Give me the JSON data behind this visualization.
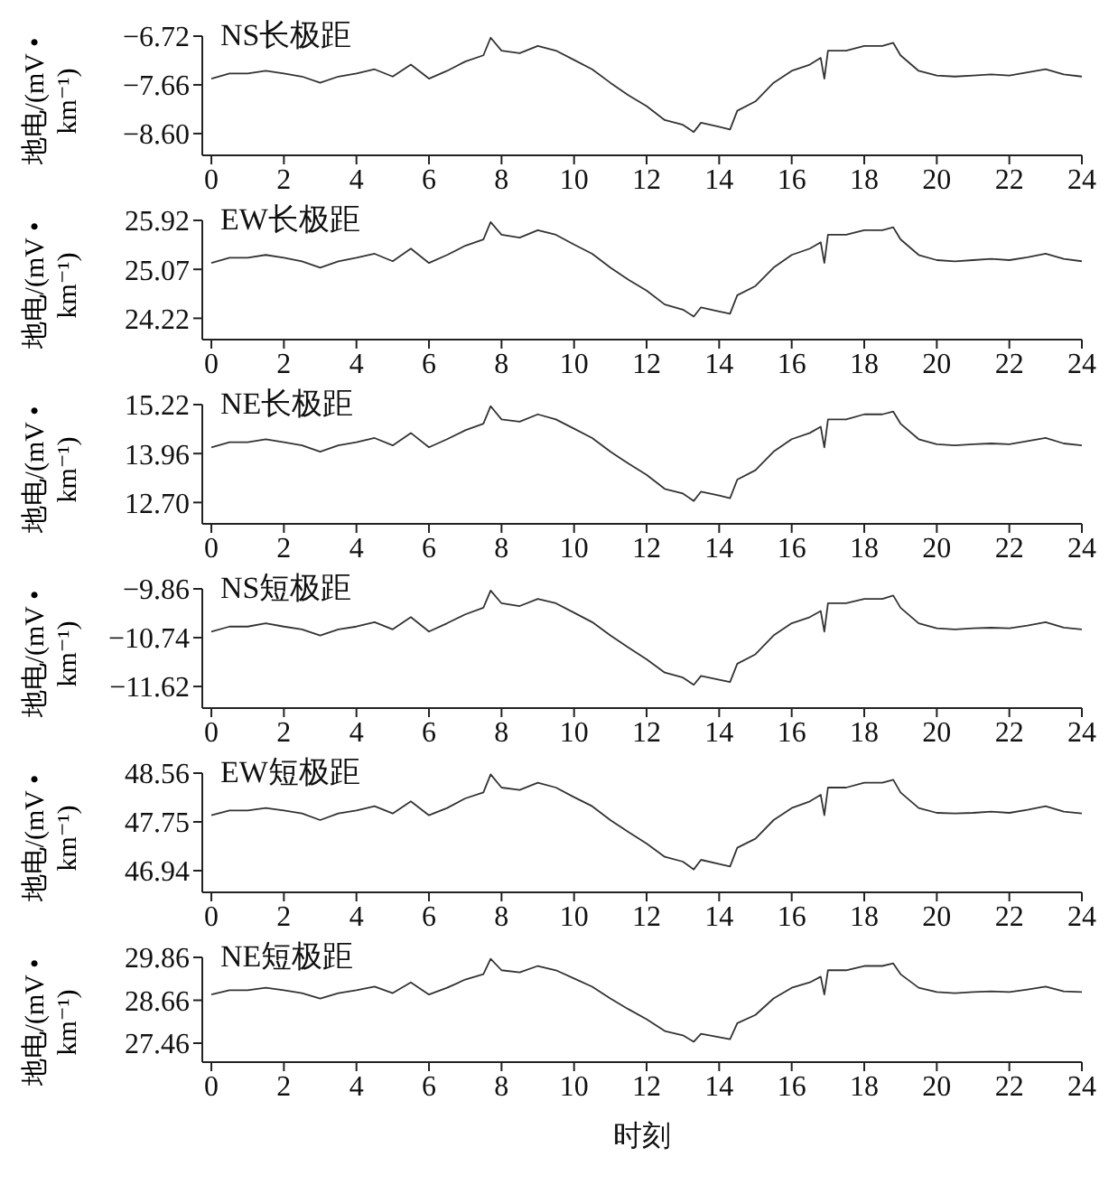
{
  "chart_data": [
    {
      "type": "line",
      "title": "NS长极距",
      "ylabel": "地电/(mV • km⁻¹)",
      "color": "#333333",
      "xlim": [
        -0.25,
        24
      ],
      "xticks": [
        0,
        2,
        4,
        6,
        8,
        10,
        12,
        14,
        16,
        18,
        20,
        22,
        24
      ],
      "ylim": [
        -9.02,
        -6.72
      ],
      "yticks": [
        {
          "value": -6.72,
          "label": "−6.72"
        },
        {
          "value": -7.66,
          "label": "−7.66"
        },
        {
          "value": -8.6,
          "label": "−8.60"
        }
      ],
      "x": [
        0,
        0.5,
        1,
        1.5,
        2,
        2.5,
        3,
        3.5,
        4,
        4.5,
        5,
        5.5,
        6,
        6.5,
        7,
        7.5,
        7.7,
        8,
        8.5,
        9,
        9.5,
        10,
        10.5,
        11,
        11.5,
        12,
        12.5,
        13,
        13.3,
        13.5,
        14,
        14.3,
        14.5,
        15,
        15.5,
        16,
        16.5,
        16.8,
        16.9,
        17,
        17.5,
        18,
        18.5,
        18.8,
        19,
        19.5,
        20,
        20.5,
        21,
        21.5,
        22,
        22.5,
        23,
        23.5,
        24
      ],
      "values": [
        -7.54,
        -7.44,
        -7.44,
        -7.39,
        -7.44,
        -7.5,
        -7.62,
        -7.5,
        -7.44,
        -7.36,
        -7.5,
        -7.27,
        -7.54,
        -7.39,
        -7.21,
        -7.09,
        -6.75,
        -7.0,
        -7.05,
        -6.91,
        -7.0,
        -7.18,
        -7.36,
        -7.62,
        -7.86,
        -8.07,
        -8.34,
        -8.43,
        -8.57,
        -8.39,
        -8.47,
        -8.52,
        -8.16,
        -7.98,
        -7.62,
        -7.39,
        -7.27,
        -7.14,
        -7.54,
        -7.0,
        -7.0,
        -6.91,
        -6.91,
        -6.85,
        -7.09,
        -7.39,
        -7.48,
        -7.5,
        -7.48,
        -7.46,
        -7.48,
        -7.42,
        -7.36,
        -7.46,
        -7.5
      ]
    },
    {
      "type": "line",
      "title": "EW长极距",
      "ylabel": "地电/(mV • km⁻¹)",
      "color": "#333333",
      "xlim": [
        -0.25,
        24
      ],
      "xticks": [
        0,
        2,
        4,
        6,
        8,
        10,
        12,
        14,
        16,
        18,
        20,
        22,
        24
      ],
      "ylim": [
        23.85,
        25.92
      ],
      "yticks": [
        {
          "value": 25.92,
          "label": "25.92"
        },
        {
          "value": 25.07,
          "label": "25.07"
        },
        {
          "value": 24.22,
          "label": "24.22"
        }
      ],
      "x": [
        0,
        0.5,
        1,
        1.5,
        2,
        2.5,
        3,
        3.5,
        4,
        4.5,
        5,
        5.5,
        6,
        6.5,
        7,
        7.5,
        7.7,
        8,
        8.5,
        9,
        9.5,
        10,
        10.5,
        11,
        11.5,
        12,
        12.5,
        13,
        13.3,
        13.5,
        14,
        14.3,
        14.5,
        15,
        15.5,
        16,
        16.5,
        16.8,
        16.9,
        17,
        17.5,
        18,
        18.5,
        18.8,
        19,
        19.5,
        20,
        20.5,
        21,
        21.5,
        22,
        22.5,
        23,
        23.5,
        24
      ],
      "values": [
        25.18,
        25.27,
        25.27,
        25.32,
        25.27,
        25.21,
        25.1,
        25.21,
        25.27,
        25.34,
        25.21,
        25.43,
        25.18,
        25.32,
        25.48,
        25.59,
        25.89,
        25.67,
        25.62,
        25.75,
        25.67,
        25.5,
        25.34,
        25.1,
        24.89,
        24.7,
        24.46,
        24.37,
        24.25,
        24.41,
        24.34,
        24.3,
        24.62,
        24.78,
        25.1,
        25.32,
        25.43,
        25.54,
        25.18,
        25.67,
        25.67,
        25.75,
        25.75,
        25.8,
        25.59,
        25.32,
        25.23,
        25.21,
        25.23,
        25.25,
        25.23,
        25.28,
        25.34,
        25.25,
        25.21
      ]
    },
    {
      "type": "line",
      "title": "NE长极距",
      "ylabel": "地电/(mV • km⁻¹)",
      "color": "#333333",
      "xlim": [
        -0.25,
        24
      ],
      "xticks": [
        0,
        2,
        4,
        6,
        8,
        10,
        12,
        14,
        16,
        18,
        20,
        22,
        24
      ],
      "ylim": [
        12.15,
        15.22
      ],
      "yticks": [
        {
          "value": 15.22,
          "label": "15.22"
        },
        {
          "value": 13.96,
          "label": "13.96"
        },
        {
          "value": 12.7,
          "label": "12.70"
        }
      ],
      "x": [
        0,
        0.5,
        1,
        1.5,
        2,
        2.5,
        3,
        3.5,
        4,
        4.5,
        5,
        5.5,
        6,
        6.5,
        7,
        7.5,
        7.7,
        8,
        8.5,
        9,
        9.5,
        10,
        10.5,
        11,
        11.5,
        12,
        12.5,
        13,
        13.3,
        13.5,
        14,
        14.3,
        14.5,
        15,
        15.5,
        16,
        16.5,
        16.8,
        16.9,
        17,
        17.5,
        18,
        18.5,
        18.8,
        19,
        19.5,
        20,
        20.5,
        21,
        21.5,
        22,
        22.5,
        23,
        23.5,
        24
      ],
      "values": [
        14.12,
        14.25,
        14.25,
        14.33,
        14.25,
        14.17,
        14.01,
        14.17,
        14.25,
        14.36,
        14.17,
        14.49,
        14.12,
        14.33,
        14.56,
        14.73,
        15.18,
        14.84,
        14.78,
        14.97,
        14.84,
        14.6,
        14.36,
        14.01,
        13.7,
        13.41,
        13.05,
        12.93,
        12.74,
        12.98,
        12.88,
        12.81,
        13.29,
        13.53,
        14.01,
        14.33,
        14.49,
        14.65,
        14.12,
        14.84,
        14.84,
        14.97,
        14.97,
        15.04,
        14.73,
        14.33,
        14.2,
        14.17,
        14.2,
        14.22,
        14.2,
        14.28,
        14.36,
        14.22,
        14.17
      ]
    },
    {
      "type": "line",
      "title": "NS短极距",
      "ylabel": "地电/(mV • km⁻¹)",
      "color": "#333333",
      "xlim": [
        -0.25,
        24
      ],
      "xticks": [
        0,
        2,
        4,
        6,
        8,
        10,
        12,
        14,
        16,
        18,
        20,
        22,
        24
      ],
      "ylim": [
        -12.01,
        -9.86
      ],
      "yticks": [
        {
          "value": -9.86,
          "label": "−9.86"
        },
        {
          "value": -10.74,
          "label": "−10.74"
        },
        {
          "value": -11.62,
          "label": "−11.62"
        }
      ],
      "x": [
        0,
        0.5,
        1,
        1.5,
        2,
        2.5,
        3,
        3.5,
        4,
        4.5,
        5,
        5.5,
        6,
        6.5,
        7,
        7.5,
        7.7,
        8,
        8.5,
        9,
        9.5,
        10,
        10.5,
        11,
        11.5,
        12,
        12.5,
        13,
        13.3,
        13.5,
        14,
        14.3,
        14.5,
        15,
        15.5,
        16,
        16.5,
        16.8,
        16.9,
        17,
        17.5,
        18,
        18.5,
        18.8,
        19,
        19.5,
        20,
        20.5,
        21,
        21.5,
        22,
        22.5,
        23,
        23.5,
        24
      ],
      "values": [
        -10.63,
        -10.54,
        -10.54,
        -10.48,
        -10.54,
        -10.59,
        -10.7,
        -10.59,
        -10.54,
        -10.46,
        -10.59,
        -10.37,
        -10.63,
        -10.48,
        -10.32,
        -10.2,
        -9.89,
        -10.12,
        -10.17,
        -10.04,
        -10.12,
        -10.29,
        -10.46,
        -10.7,
        -10.92,
        -11.13,
        -11.37,
        -11.46,
        -11.59,
        -11.43,
        -11.5,
        -11.54,
        -11.21,
        -11.04,
        -10.7,
        -10.48,
        -10.37,
        -10.26,
        -10.63,
        -10.12,
        -10.12,
        -10.04,
        -10.04,
        -9.98,
        -10.2,
        -10.48,
        -10.57,
        -10.59,
        -10.57,
        -10.56,
        -10.57,
        -10.52,
        -10.46,
        -10.56,
        -10.59
      ]
    },
    {
      "type": "line",
      "title": "EW短极距",
      "ylabel": "地电/(mV • km⁻¹)",
      "color": "#333333",
      "xlim": [
        -0.25,
        24
      ],
      "xticks": [
        0,
        2,
        4,
        6,
        8,
        10,
        12,
        14,
        16,
        18,
        20,
        22,
        24
      ],
      "ylim": [
        46.58,
        48.56
      ],
      "yticks": [
        {
          "value": 48.56,
          "label": "48.56"
        },
        {
          "value": 47.75,
          "label": "47.75"
        },
        {
          "value": 46.94,
          "label": "46.94"
        }
      ],
      "x": [
        0,
        0.5,
        1,
        1.5,
        2,
        2.5,
        3,
        3.5,
        4,
        4.5,
        5,
        5.5,
        6,
        6.5,
        7,
        7.5,
        7.7,
        8,
        8.5,
        9,
        9.5,
        10,
        10.5,
        11,
        11.5,
        12,
        12.5,
        13,
        13.3,
        13.5,
        14,
        14.3,
        14.5,
        15,
        15.5,
        16,
        16.5,
        16.8,
        16.9,
        17,
        17.5,
        18,
        18.5,
        18.8,
        19,
        19.5,
        20,
        20.5,
        21,
        21.5,
        22,
        22.5,
        23,
        23.5,
        24
      ],
      "values": [
        47.86,
        47.94,
        47.94,
        47.98,
        47.94,
        47.89,
        47.78,
        47.89,
        47.94,
        48.01,
        47.89,
        48.09,
        47.86,
        47.98,
        48.14,
        48.24,
        48.54,
        48.32,
        48.28,
        48.4,
        48.32,
        48.16,
        48.01,
        47.78,
        47.58,
        47.39,
        47.17,
        47.09,
        46.96,
        47.12,
        47.05,
        47.01,
        47.32,
        47.47,
        47.78,
        47.98,
        48.09,
        48.2,
        47.86,
        48.32,
        48.32,
        48.4,
        48.4,
        48.45,
        48.24,
        47.98,
        47.9,
        47.89,
        47.9,
        47.92,
        47.9,
        47.95,
        48.01,
        47.92,
        47.89
      ]
    },
    {
      "type": "line",
      "title": "NE短极距",
      "xlabel": "时刻",
      "ylabel": "地电/(mV • km⁻¹)",
      "color": "#333333",
      "xlim": [
        -0.25,
        24
      ],
      "xticks": [
        0,
        2,
        4,
        6,
        8,
        10,
        12,
        14,
        16,
        18,
        20,
        22,
        24
      ],
      "ylim": [
        26.93,
        29.86
      ],
      "yticks": [
        {
          "value": 29.86,
          "label": "29.86"
        },
        {
          "value": 28.66,
          "label": "28.66"
        },
        {
          "value": 27.46,
          "label": "27.46"
        }
      ],
      "x": [
        0,
        0.5,
        1,
        1.5,
        2,
        2.5,
        3,
        3.5,
        4,
        4.5,
        5,
        5.5,
        6,
        6.5,
        7,
        7.5,
        7.7,
        8,
        8.5,
        9,
        9.5,
        10,
        10.5,
        11,
        11.5,
        12,
        12.5,
        13,
        13.3,
        13.5,
        14,
        14.3,
        14.5,
        15,
        15.5,
        16,
        16.5,
        16.8,
        16.9,
        17,
        17.5,
        18,
        18.5,
        18.8,
        19,
        19.5,
        20,
        20.5,
        21,
        21.5,
        22,
        22.5,
        23,
        23.5,
        24
      ],
      "values": [
        28.82,
        28.94,
        28.94,
        29.01,
        28.94,
        28.86,
        28.71,
        28.86,
        28.94,
        29.04,
        28.86,
        29.16,
        28.82,
        29.01,
        29.24,
        29.39,
        29.82,
        29.5,
        29.44,
        29.62,
        29.5,
        29.27,
        29.04,
        28.71,
        28.41,
        28.13,
        27.8,
        27.68,
        27.5,
        27.72,
        27.63,
        27.57,
        28.02,
        28.25,
        28.71,
        29.01,
        29.16,
        29.32,
        28.82,
        29.5,
        29.5,
        29.62,
        29.62,
        29.69,
        29.39,
        29.01,
        28.89,
        28.86,
        28.89,
        28.91,
        28.89,
        28.96,
        29.04,
        28.91,
        28.89
      ]
    }
  ]
}
